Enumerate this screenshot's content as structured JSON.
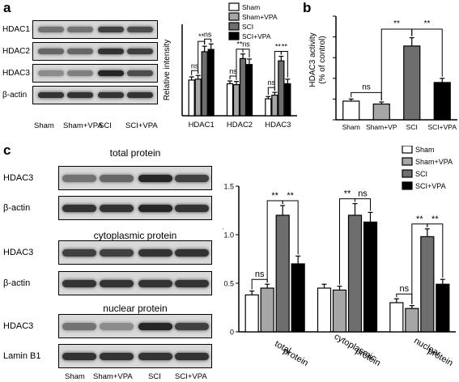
{
  "panels": {
    "a": {
      "letter": "a",
      "blot": {
        "rows": [
          "HDAC1",
          "HDAC2",
          "HDAC3",
          "β-actin"
        ],
        "lanes": [
          "Sham",
          "Sham+VPA",
          "SCI",
          "SCI+VPA"
        ],
        "band_intensity": [
          [
            0.55,
            0.55,
            0.75,
            0.7
          ],
          [
            0.6,
            0.6,
            0.8,
            0.75
          ],
          [
            0.45,
            0.5,
            0.85,
            0.7
          ],
          [
            0.8,
            0.8,
            0.8,
            0.8
          ]
        ]
      }
    },
    "b": {
      "letter": "b"
    },
    "c": {
      "letter": "c",
      "sections": [
        {
          "title": "total protein",
          "rows": [
            "HDAC3",
            "β-actin"
          ],
          "band_intensity": [
            [
              0.55,
              0.6,
              0.85,
              0.75
            ],
            [
              0.8,
              0.8,
              0.85,
              0.8
            ]
          ]
        },
        {
          "title": "cytoplasmic protein",
          "rows": [
            "HDAC3",
            "β-actin"
          ],
          "band_intensity": [
            [
              0.75,
              0.75,
              0.8,
              0.8
            ],
            [
              0.8,
              0.8,
              0.8,
              0.8
            ]
          ]
        },
        {
          "title": "nuclear protein",
          "rows": [
            "HDAC3",
            "Lamin B1"
          ],
          "band_intensity": [
            [
              0.55,
              0.45,
              0.85,
              0.75
            ],
            [
              0.8,
              0.8,
              0.8,
              0.8
            ]
          ]
        }
      ],
      "lanes": [
        "Sham",
        "Sham+VPA",
        "SCI",
        "SCI+VPA"
      ]
    }
  },
  "series_colors": [
    "#ffffff",
    "#a6a6a6",
    "#6e6e6e",
    "#000000"
  ],
  "chart_data": [
    {
      "id": "a-chart",
      "type": "bar",
      "categories": [
        "HDAC1",
        "HDAC2",
        "HDAC3"
      ],
      "ylabel": "Relative intensity",
      "ylim": [
        0,
        2.0
      ],
      "series": [
        {
          "name": "Sham",
          "values": [
            0.78,
            0.7,
            0.37
          ],
          "errors": [
            0.07,
            0.06,
            0.05
          ]
        },
        {
          "name": "Sham+VPA",
          "values": [
            0.8,
            0.68,
            0.45
          ],
          "errors": [
            0.08,
            0.07,
            0.06
          ]
        },
        {
          "name": "SCI",
          "values": [
            1.4,
            1.25,
            1.2
          ],
          "errors": [
            0.12,
            0.1,
            0.1
          ]
        },
        {
          "name": "SCI+VPA",
          "values": [
            1.45,
            1.12,
            0.7
          ],
          "errors": [
            0.12,
            0.12,
            0.1
          ]
        }
      ],
      "annotations": [
        "ns",
        "**",
        "ns",
        "ns",
        "**",
        "ns",
        "ns",
        "**",
        "**"
      ],
      "legend": [
        "Sham",
        "Sham+VPA",
        "SCI",
        "SCI+VPA"
      ],
      "legend_position": "top-right"
    },
    {
      "id": "b-chart",
      "type": "bar",
      "categories": [
        "Sham",
        "Sham+VP",
        "SCI",
        "SCI+VPA"
      ],
      "ylabel": "HDAC3 activity\n(% of control)",
      "ylim": [
        0,
        250
      ],
      "yticks": [
        0,
        50,
        100,
        150,
        200,
        250
      ],
      "values": [
        45,
        38,
        178,
        90
      ],
      "errors": [
        5,
        5,
        20,
        10
      ],
      "annotations": [
        "ns",
        "**",
        "**"
      ]
    },
    {
      "id": "c-chart",
      "type": "bar",
      "categories": [
        "total protein",
        "cytoplasmic protein",
        "nuclear protein"
      ],
      "ylabel": "Relative intensity",
      "ylim": [
        0,
        1.5
      ],
      "yticks": [
        0,
        0.5,
        1.0,
        1.5
      ],
      "series": [
        {
          "name": "Sham",
          "values": [
            0.38,
            0.45,
            0.3
          ],
          "errors": [
            0.04,
            0.04,
            0.04
          ]
        },
        {
          "name": "Sham+VPA",
          "values": [
            0.45,
            0.43,
            0.24
          ],
          "errors": [
            0.04,
            0.04,
            0.03
          ]
        },
        {
          "name": "SCI",
          "values": [
            1.2,
            1.2,
            0.98
          ],
          "errors": [
            0.1,
            0.12,
            0.08
          ]
        },
        {
          "name": "SCI+VPA",
          "values": [
            0.7,
            1.13,
            0.49
          ],
          "errors": [
            0.08,
            0.1,
            0.05
          ]
        }
      ],
      "annotations": [
        "ns",
        "**",
        "**",
        "**",
        "ns",
        "ns",
        "**",
        "**"
      ],
      "legend": [
        "Sham",
        "Sham+VPA",
        "SCI",
        "SCI+VPA"
      ],
      "legend_position": "top-right"
    }
  ]
}
